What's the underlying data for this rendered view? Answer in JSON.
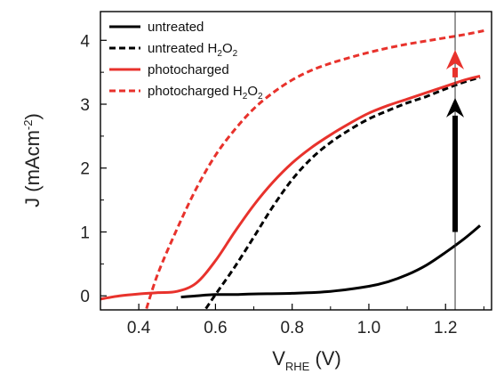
{
  "chart_data": {
    "type": "line",
    "xlabel": {
      "main": "V",
      "sub": "RHE",
      "suffix": " (V)"
    },
    "ylabel": {
      "main": "J (mAcm",
      "sup": "-2",
      "suffix": ")"
    },
    "xlim": [
      0.3,
      1.32
    ],
    "ylim": [
      -0.22,
      4.45
    ],
    "xticks": [
      0.4,
      0.6,
      0.8,
      1.0,
      1.2
    ],
    "xtick_labels": [
      "0.4",
      "0.6",
      "0.8",
      "1.0",
      "1.2"
    ],
    "yticks": [
      0,
      1,
      2,
      3,
      4
    ],
    "ytick_labels": [
      "0",
      "1",
      "2",
      "3",
      "4"
    ],
    "vline_x": 1.225,
    "legend": {
      "position": "top-left"
    },
    "series": [
      {
        "name": "untreated",
        "label_main": "untreated",
        "label_sub": "",
        "color": "#000000",
        "dash": "solid",
        "x": [
          0.51,
          0.55,
          0.6,
          0.65,
          0.7,
          0.8,
          0.9,
          1.0,
          1.05,
          1.1,
          1.15,
          1.2,
          1.25,
          1.29
        ],
        "y": [
          -0.02,
          0.0,
          0.02,
          0.02,
          0.03,
          0.04,
          0.07,
          0.15,
          0.22,
          0.33,
          0.48,
          0.68,
          0.9,
          1.1
        ]
      },
      {
        "name": "untreated H2O2",
        "label_main": "untreated H",
        "label_sub": "2",
        "label_tail": "O",
        "label_sub2": "2",
        "color": "#000000",
        "dash": "dashed",
        "x": [
          0.575,
          0.6,
          0.65,
          0.7,
          0.75,
          0.8,
          0.85,
          0.9,
          0.95,
          1.0,
          1.05,
          1.1,
          1.15,
          1.2,
          1.25,
          1.29
        ],
        "y": [
          -0.2,
          0.02,
          0.45,
          0.92,
          1.4,
          1.82,
          2.15,
          2.4,
          2.6,
          2.77,
          2.9,
          3.02,
          3.12,
          3.24,
          3.35,
          3.42
        ]
      },
      {
        "name": "photocharged",
        "label_main": "photocharged",
        "label_sub": "",
        "color": "#e8322c",
        "dash": "solid",
        "x": [
          0.3,
          0.35,
          0.4,
          0.45,
          0.5,
          0.55,
          0.6,
          0.65,
          0.7,
          0.75,
          0.8,
          0.85,
          0.9,
          0.95,
          1.0,
          1.05,
          1.1,
          1.15,
          1.2,
          1.25,
          1.29
        ],
        "y": [
          -0.05,
          0.0,
          0.03,
          0.05,
          0.07,
          0.2,
          0.55,
          1.0,
          1.42,
          1.78,
          2.08,
          2.32,
          2.52,
          2.7,
          2.86,
          2.98,
          3.08,
          3.18,
          3.28,
          3.38,
          3.44
        ]
      },
      {
        "name": "photocharged H2O2",
        "label_main": "photocharged H",
        "label_sub": "2",
        "label_tail": "O",
        "label_sub2": "2",
        "color": "#e8322c",
        "dash": "dashed",
        "x": [
          0.42,
          0.45,
          0.5,
          0.55,
          0.6,
          0.65,
          0.7,
          0.75,
          0.8,
          0.85,
          0.9,
          0.95,
          1.0,
          1.05,
          1.1,
          1.15,
          1.2,
          1.25,
          1.3
        ],
        "y": [
          -0.2,
          0.35,
          1.05,
          1.68,
          2.2,
          2.6,
          2.93,
          3.18,
          3.38,
          3.53,
          3.64,
          3.73,
          3.81,
          3.88,
          3.94,
          3.99,
          4.04,
          4.09,
          4.15
        ]
      }
    ],
    "arrows": [
      {
        "color": "#000000",
        "x": 1.225,
        "y_from": 1.0,
        "y_to": 3.1
      },
      {
        "color": "#e8322c",
        "x": 1.225,
        "y_from": 3.42,
        "y_to": 3.85
      }
    ]
  }
}
